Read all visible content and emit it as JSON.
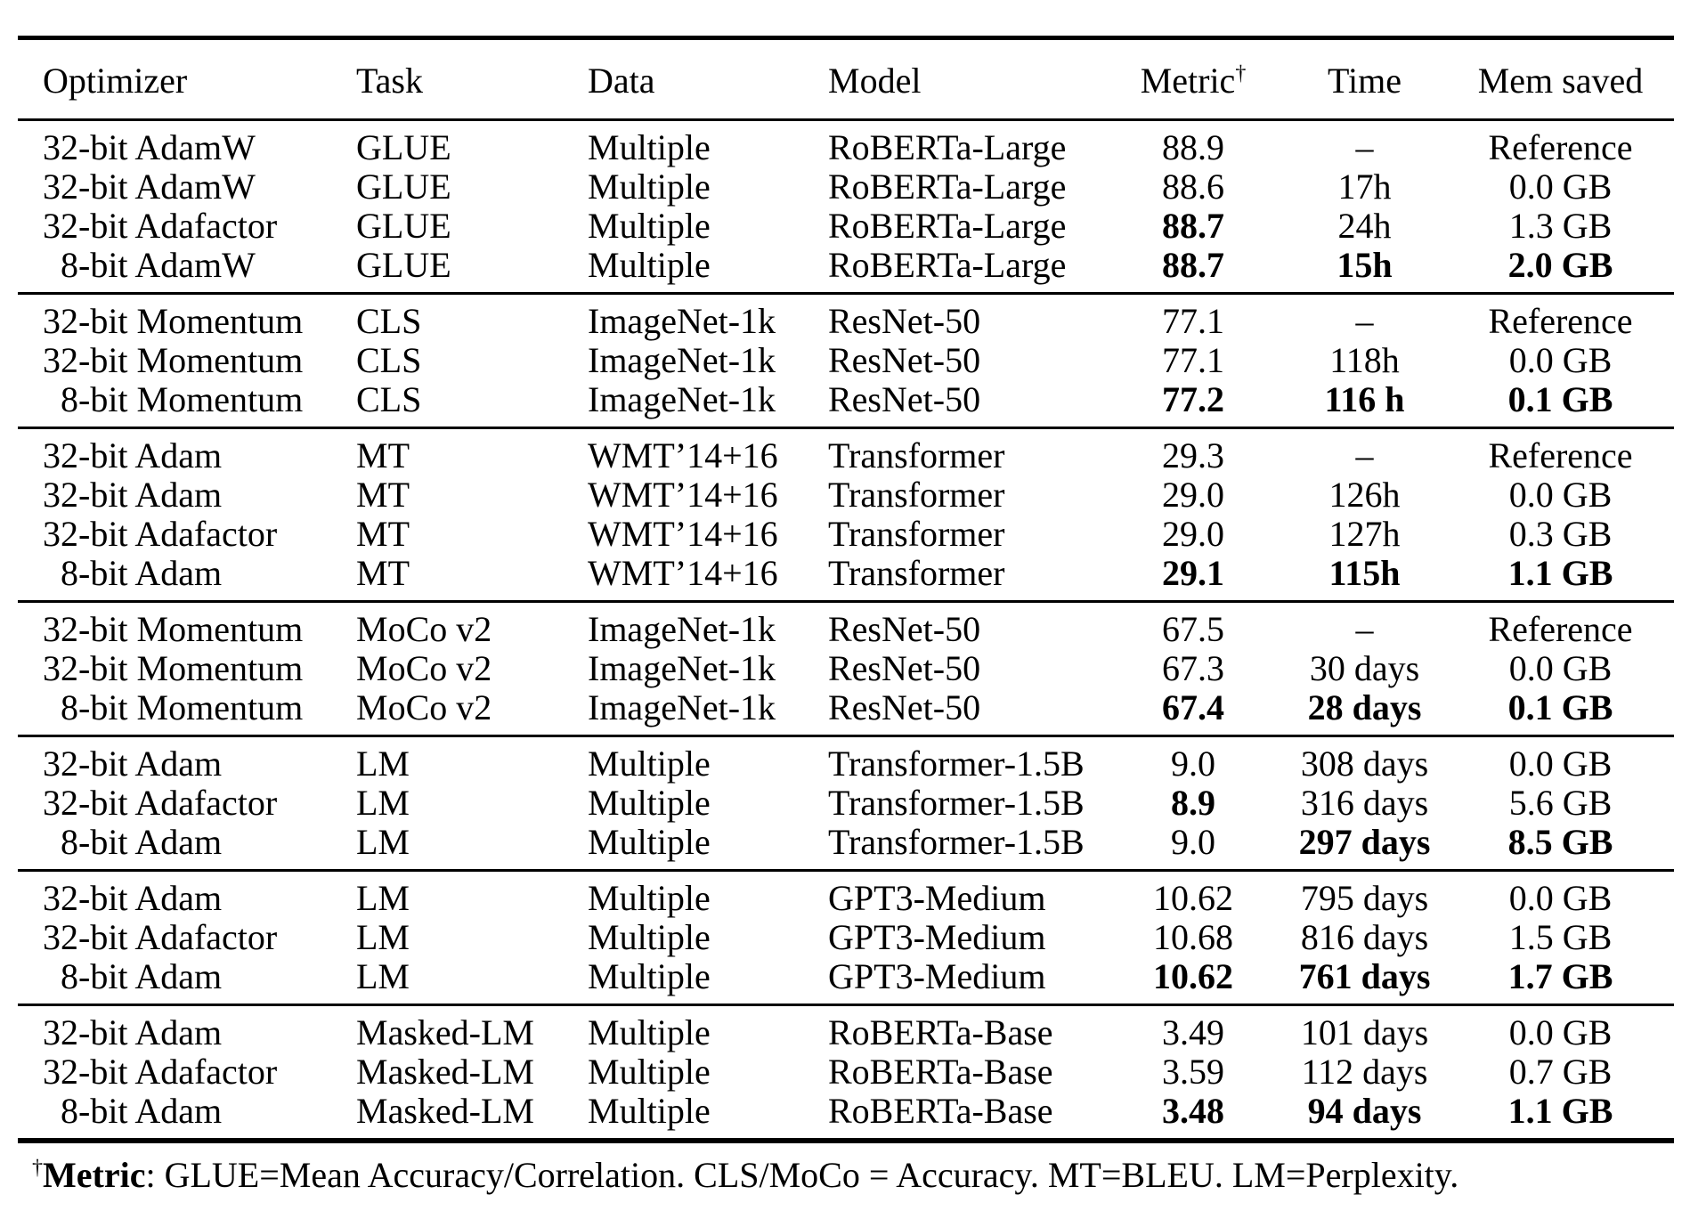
{
  "colors": {
    "background": "#ffffff",
    "text": "#000000",
    "rule": "#000000"
  },
  "table": {
    "header": {
      "columns": [
        "Optimizer",
        "Task",
        "Data",
        "Model",
        "Metric",
        "Time",
        "Mem saved"
      ],
      "metric_superscript": "†"
    },
    "groups": [
      {
        "rows": [
          {
            "cells": [
              "32-bit AdamW",
              "GLUE",
              "Multiple",
              "RoBERTa-Large",
              "88.9",
              "–",
              "Reference"
            ],
            "bold": []
          },
          {
            "cells": [
              "32-bit AdamW",
              "GLUE",
              "Multiple",
              "RoBERTa-Large",
              "88.6",
              "17h",
              "0.0 GB"
            ],
            "bold": []
          },
          {
            "cells": [
              "32-bit Adafactor",
              "GLUE",
              "Multiple",
              "RoBERTa-Large",
              "88.7",
              "24h",
              "1.3 GB"
            ],
            "bold": [
              4
            ]
          },
          {
            "cells": [
              "8-bit AdamW",
              "GLUE",
              "Multiple",
              "RoBERTa-Large",
              "88.7",
              "15h",
              "2.0 GB"
            ],
            "bold": [
              4,
              5,
              6
            ]
          }
        ]
      },
      {
        "rows": [
          {
            "cells": [
              "32-bit Momentum",
              "CLS",
              "ImageNet-1k",
              "ResNet-50",
              "77.1",
              "–",
              "Reference"
            ],
            "bold": []
          },
          {
            "cells": [
              "32-bit Momentum",
              "CLS",
              "ImageNet-1k",
              "ResNet-50",
              "77.1",
              "118h",
              "0.0 GB"
            ],
            "bold": []
          },
          {
            "cells": [
              "8-bit Momentum",
              "CLS",
              "ImageNet-1k",
              "ResNet-50",
              "77.2",
              "116 h",
              "0.1 GB"
            ],
            "bold": [
              4,
              5,
              6
            ]
          }
        ]
      },
      {
        "rows": [
          {
            "cells": [
              "32-bit Adam",
              "MT",
              "WMT’14+16",
              "Transformer",
              "29.3",
              "–",
              "Reference"
            ],
            "bold": []
          },
          {
            "cells": [
              "32-bit Adam",
              "MT",
              "WMT’14+16",
              "Transformer",
              "29.0",
              "126h",
              "0.0 GB"
            ],
            "bold": []
          },
          {
            "cells": [
              "32-bit Adafactor",
              "MT",
              "WMT’14+16",
              "Transformer",
              "29.0",
              "127h",
              "0.3 GB"
            ],
            "bold": []
          },
          {
            "cells": [
              "8-bit Adam",
              "MT",
              "WMT’14+16",
              "Transformer",
              "29.1",
              "115h",
              "1.1 GB"
            ],
            "bold": [
              4,
              5,
              6
            ]
          }
        ]
      },
      {
        "rows": [
          {
            "cells": [
              "32-bit Momentum",
              "MoCo v2",
              "ImageNet-1k",
              "ResNet-50",
              "67.5",
              "–",
              "Reference"
            ],
            "bold": []
          },
          {
            "cells": [
              "32-bit Momentum",
              "MoCo v2",
              "ImageNet-1k",
              "ResNet-50",
              "67.3",
              "30 days",
              "0.0 GB"
            ],
            "bold": []
          },
          {
            "cells": [
              "8-bit Momentum",
              "MoCo v2",
              "ImageNet-1k",
              "ResNet-50",
              "67.4",
              "28 days",
              "0.1 GB"
            ],
            "bold": [
              4,
              5,
              6
            ]
          }
        ]
      },
      {
        "rows": [
          {
            "cells": [
              "32-bit Adam",
              "LM",
              "Multiple",
              "Transformer-1.5B",
              "9.0",
              "308 days",
              "0.0 GB"
            ],
            "bold": []
          },
          {
            "cells": [
              "32-bit Adafactor",
              "LM",
              "Multiple",
              "Transformer-1.5B",
              "8.9",
              "316 days",
              "5.6 GB"
            ],
            "bold": [
              4
            ]
          },
          {
            "cells": [
              "8-bit Adam",
              "LM",
              "Multiple",
              "Transformer-1.5B",
              "9.0",
              "297 days",
              "8.5 GB"
            ],
            "bold": [
              5,
              6
            ]
          }
        ]
      },
      {
        "rows": [
          {
            "cells": [
              "32-bit Adam",
              "LM",
              "Multiple",
              "GPT3-Medium",
              "10.62",
              "795 days",
              "0.0 GB"
            ],
            "bold": []
          },
          {
            "cells": [
              "32-bit Adafactor",
              "LM",
              "Multiple",
              "GPT3-Medium",
              "10.68",
              "816 days",
              "1.5 GB"
            ],
            "bold": []
          },
          {
            "cells": [
              "8-bit Adam",
              "LM",
              "Multiple",
              "GPT3-Medium",
              "10.62",
              "761 days",
              "1.7 GB"
            ],
            "bold": [
              4,
              5,
              6
            ]
          }
        ]
      },
      {
        "rows": [
          {
            "cells": [
              "32-bit Adam",
              "Masked-LM",
              "Multiple",
              "RoBERTa-Base",
              "3.49",
              "101 days",
              "0.0 GB"
            ],
            "bold": []
          },
          {
            "cells": [
              "32-bit Adafactor",
              "Masked-LM",
              "Multiple",
              "RoBERTa-Base",
              "3.59",
              "112 days",
              "0.7 GB"
            ],
            "bold": []
          },
          {
            "cells": [
              "8-bit Adam",
              "Masked-LM",
              "Multiple",
              "RoBERTa-Base",
              "3.48",
              "94 days",
              "1.1 GB"
            ],
            "bold": [
              4,
              5,
              6
            ]
          }
        ]
      }
    ]
  },
  "footnote": {
    "dagger": "†",
    "label": "Metric",
    "text": ": GLUE=Mean Accuracy/Correlation. CLS/MoCo = Accuracy. MT=BLEU. LM=Perplexity."
  }
}
